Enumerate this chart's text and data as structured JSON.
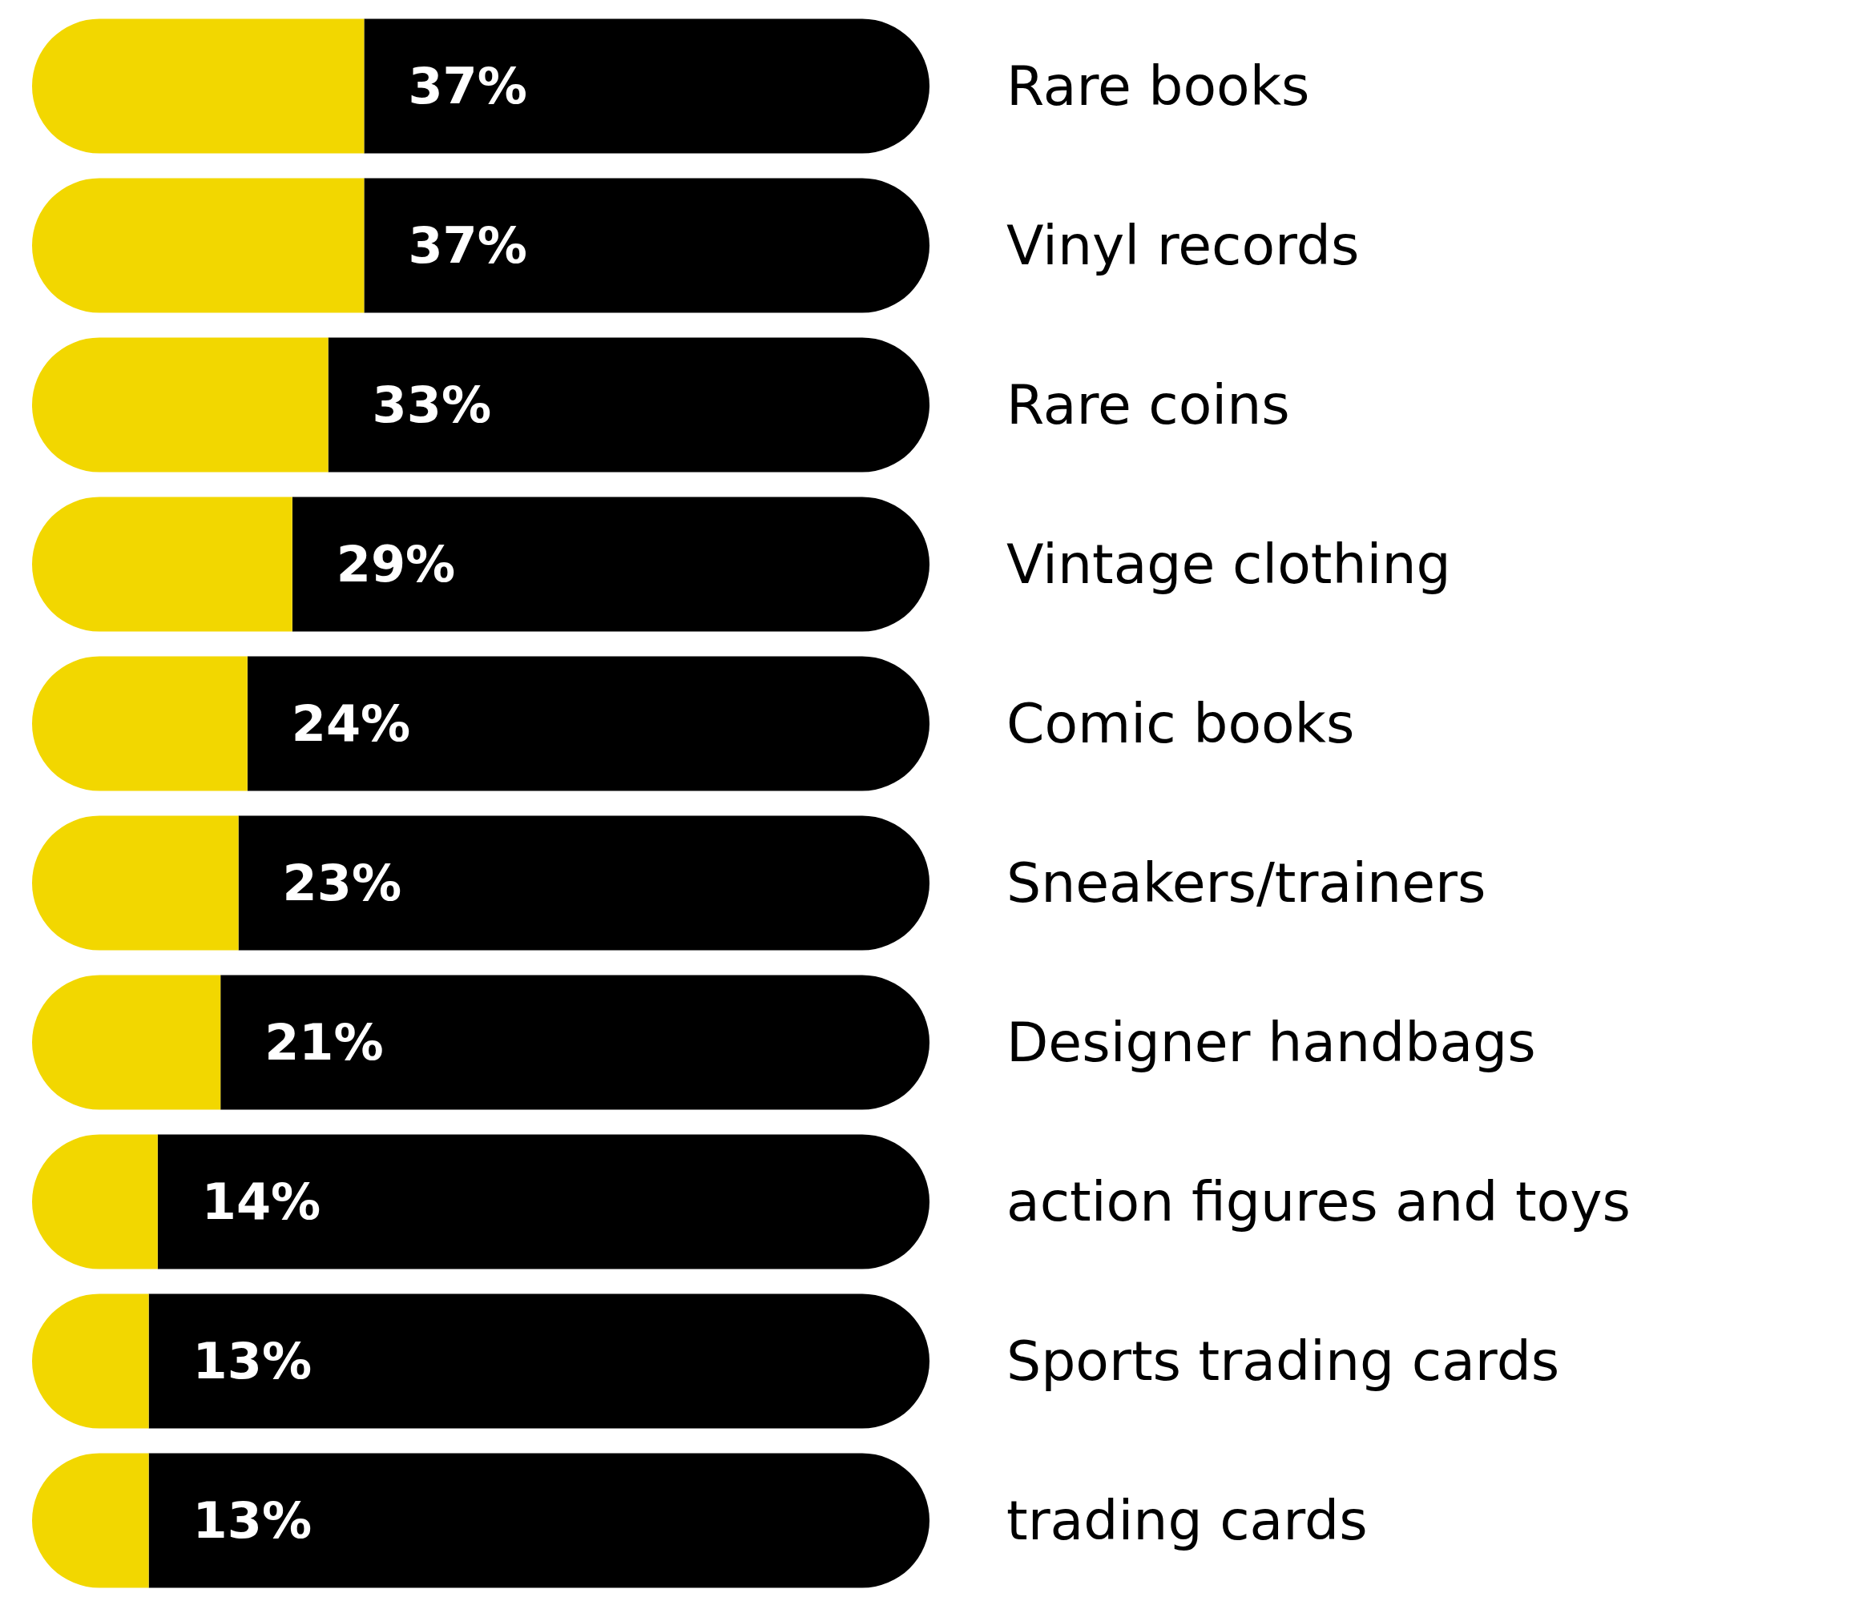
{
  "chart_data": {
    "type": "bar",
    "orientation": "horizontal",
    "stacked": true,
    "tick_labels": "y",
    "xlim": [
      0,
      100
    ],
    "categories": [
      "Rare books",
      "Vinyl records",
      "Rare coins",
      "Vintage clothing",
      "Comic books",
      "Sneakers/trainers",
      "Designer handbags",
      "action figures and toys",
      "Sports trading cards",
      "trading cards"
    ],
    "series": [
      {
        "color": "#f2d700",
        "values": [
          37,
          37,
          33,
          29,
          24,
          23,
          21,
          14,
          13,
          13
        ],
        "value_labels": [
          "37%",
          "37%",
          "33%",
          "29%",
          "24%",
          "23%",
          "21%",
          "14%",
          "13%",
          "13%"
        ]
      },
      {
        "color": "#000000",
        "values": [
          63,
          63,
          67,
          71,
          76,
          77,
          79,
          86,
          87,
          87
        ]
      }
    ]
  }
}
